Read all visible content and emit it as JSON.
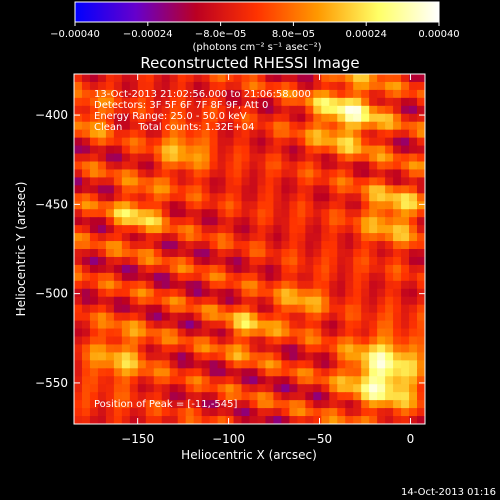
{
  "chart_data": {
    "type": "heatmap",
    "title": "Reconstructed RHESSI Image",
    "xlabel": "Heliocentric X (arcsec)",
    "ylabel": "Heliocentric Y (arcsec)",
    "xlim": [
      -185,
      8
    ],
    "ylim": [
      -573,
      -377
    ],
    "x_ticks": [
      -150,
      -100,
      -50,
      0
    ],
    "y_ticks": [
      -400,
      -450,
      -500,
      -550
    ],
    "x_tick_labels": [
      "−150",
      "−100",
      "−50",
      "0"
    ],
    "y_tick_labels": [
      "−400",
      "−450",
      "−500",
      "−550"
    ],
    "colorbar": {
      "range": [
        -0.0004,
        0.0004
      ],
      "ticks": [
        -0.0004,
        -0.00024,
        -8e-05,
        8e-05,
        0.00024,
        0.0004
      ],
      "tick_labels": [
        "−0.00040",
        "−0.00024",
        "−8.0e−05",
        "8.0e−05",
        "0.00024",
        "0.00040"
      ],
      "units_label": "(photons cm⁻² s⁻¹ asec⁻²)",
      "colormap": [
        "#0000ff",
        "#6600cc",
        "#bb0022",
        "#ff3300",
        "#ff9900",
        "#ffff66",
        "#ffffff"
      ]
    },
    "annotations": [
      "13-Oct-2013 21:02:56.000 to 21:06:58.000",
      "Detectors: 3F 5F 6F 7F 8F 9F, Att 0",
      "Energy Range: 25.0 - 50.0 keV",
      "Clean     Total counts: 1.32E+04"
    ],
    "peak_text": "Position of Peak = [-11,-545]",
    "peak": {
      "x": -11,
      "y": -545
    },
    "bright_regions": [
      {
        "x": -15,
        "y": -545,
        "sigma": 14,
        "level": 0.0004
      },
      {
        "x": -35,
        "y": -400,
        "sigma": 14,
        "level": 0.0003
      },
      {
        "x": -10,
        "y": -455,
        "sigma": 12,
        "level": 0.00022
      },
      {
        "x": -160,
        "y": -535,
        "sigma": 12,
        "level": 0.00018
      },
      {
        "x": -150,
        "y": -455,
        "sigma": 10,
        "level": 0.0002
      },
      {
        "x": -90,
        "y": -520,
        "sigma": 10,
        "level": 0.00016
      },
      {
        "x": -125,
        "y": -420,
        "sigma": 10,
        "level": 0.00018
      },
      {
        "x": -60,
        "y": -505,
        "sigma": 9,
        "level": 0.00016
      },
      {
        "x": -175,
        "y": -400,
        "sigma": 8,
        "level": 0.00014
      }
    ],
    "background_level": -4e-05
  },
  "footer": {
    "timestamp": "14-Oct-2013 01:16"
  }
}
